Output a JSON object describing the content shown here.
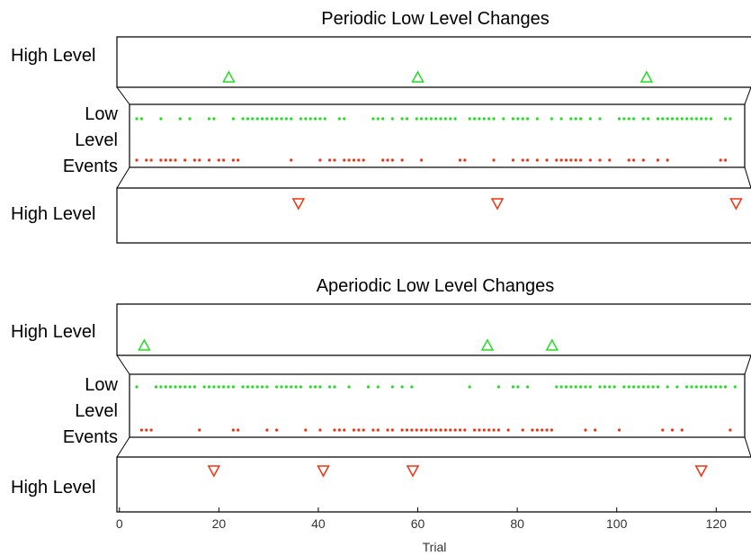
{
  "chart_data": [
    {
      "type": "scatter",
      "title": "Periodic Low Level Changes",
      "labels": {
        "high_top": "High Level",
        "low": [
          "Low",
          "Level",
          "Events"
        ],
        "high_bottom": "High Level"
      },
      "high_up_trials": [
        22,
        60,
        106
      ],
      "high_down_trials": [
        36,
        76,
        124
      ],
      "low_green_trials": [
        1,
        2,
        6,
        10,
        12,
        16,
        17,
        21,
        23,
        24,
        25,
        26,
        27,
        28,
        29,
        30,
        31,
        32,
        33,
        35,
        36,
        37,
        38,
        39,
        40,
        43,
        44,
        50,
        51,
        52,
        54,
        56,
        57,
        59,
        60,
        61,
        62,
        63,
        64,
        65,
        66,
        67,
        70,
        71,
        72,
        73,
        74,
        75,
        77,
        79,
        80,
        81,
        82,
        84,
        87,
        89,
        91,
        92,
        93,
        95,
        97,
        101,
        102,
        103,
        104,
        106,
        107,
        109,
        110,
        111,
        112,
        113,
        114,
        115,
        116,
        117,
        118,
        119,
        120,
        123,
        124
      ],
      "low_red_trials": [
        1,
        3,
        4,
        6,
        7,
        8,
        9,
        11,
        13,
        14,
        16,
        18,
        19,
        21,
        22,
        33,
        39,
        41,
        42,
        44,
        45,
        46,
        47,
        48,
        52,
        53,
        54,
        56,
        60,
        68,
        69,
        75,
        79,
        81,
        82,
        84,
        86,
        88,
        89,
        90,
        91,
        92,
        93,
        95,
        97,
        99,
        103,
        104,
        106,
        109,
        111,
        122,
        123
      ]
    },
    {
      "type": "scatter",
      "title": "Aperiodic Low Level Changes",
      "labels": {
        "high_top": "High Level",
        "low": [
          "Low",
          "Level",
          "Events"
        ],
        "high_bottom": "High Level"
      },
      "high_up_trials": [
        5,
        74,
        87
      ],
      "high_down_trials": [
        19,
        41,
        59,
        117
      ],
      "low_green_trials": [
        1,
        5,
        6,
        7,
        8,
        9,
        10,
        11,
        12,
        13,
        15,
        16,
        17,
        18,
        19,
        20,
        21,
        23,
        24,
        25,
        26,
        27,
        28,
        30,
        31,
        32,
        33,
        34,
        35,
        37,
        38,
        39,
        41,
        42,
        45,
        49,
        51,
        54,
        56,
        58,
        70,
        76,
        79,
        80,
        82,
        88,
        89,
        90,
        91,
        92,
        93,
        94,
        95,
        97,
        98,
        99,
        100,
        102,
        103,
        104,
        105,
        106,
        107,
        108,
        109,
        111,
        113,
        115,
        116,
        117,
        118,
        119,
        120,
        121,
        122,
        123,
        125
      ],
      "low_red_trials": [
        2,
        3,
        4,
        14,
        21,
        22,
        28,
        30,
        36,
        39,
        42,
        43,
        44,
        46,
        47,
        48,
        50,
        51,
        53,
        54,
        56,
        57,
        58,
        59,
        60,
        61,
        62,
        63,
        64,
        65,
        66,
        67,
        68,
        69,
        71,
        72,
        73,
        74,
        75,
        76,
        78,
        81,
        83,
        84,
        85,
        86,
        87,
        94,
        96,
        101,
        110,
        112,
        114,
        124
      ]
    }
  ],
  "x_axis": {
    "label": "Trial",
    "ticks": [
      0,
      20,
      40,
      60,
      80,
      100,
      120
    ],
    "range": [
      -0.5,
      127
    ]
  },
  "colors": {
    "up": "#22dd22",
    "down": "#ee3311",
    "axis": "#000000"
  }
}
